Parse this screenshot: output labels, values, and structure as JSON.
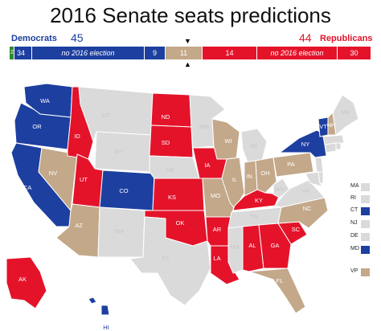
{
  "title": "2016 Senate seats predictions",
  "colors": {
    "dem": "#1d3fa0",
    "rep": "#e4132a",
    "vp": "#c3a889",
    "none": "#dadada",
    "ind": "#2e8b2e"
  },
  "democrats": {
    "label": "Democrats",
    "seats": "45"
  },
  "republicans": {
    "label": "Republicans",
    "seats": "44"
  },
  "bar": [
    {
      "id": "ind",
      "text": "2",
      "color": "ind",
      "italic": false
    },
    {
      "id": "dem-safe",
      "text": "34",
      "color": "dem",
      "italic": false
    },
    {
      "id": "dem-none",
      "text": "no 2016 election",
      "color": "dem",
      "italic": true
    },
    {
      "id": "dem-up",
      "text": "9",
      "color": "dem",
      "italic": false
    },
    {
      "id": "vp",
      "text": "11",
      "color": "vp",
      "italic": false
    },
    {
      "id": "rep-up",
      "text": "14",
      "color": "rep",
      "italic": false
    },
    {
      "id": "rep-none",
      "text": "no 2016 election",
      "color": "rep",
      "italic": true
    },
    {
      "id": "rep-safe",
      "text": "30",
      "color": "rep",
      "italic": false
    }
  ],
  "marker_top": "▼",
  "marker_bottom": "▲",
  "states": {
    "WA": "dem",
    "OR": "dem",
    "CA": "dem",
    "NV": "vp",
    "ID": "rep",
    "MT": "none",
    "WY": "none",
    "UT": "rep",
    "AZ": "vp",
    "CO": "dem",
    "NM": "none",
    "ND": "rep",
    "SD": "rep",
    "NE": "none",
    "KS": "rep",
    "OK": "rep",
    "TX": "none",
    "MN": "none",
    "IA": "rep",
    "MO": "vp",
    "AR": "rep",
    "LA": "rep",
    "WI": "vp",
    "IL": "vp",
    "MI": "none",
    "IN": "vp",
    "OH": "vp",
    "KY": "rep",
    "TN": "none",
    "MS": "none",
    "AL": "rep",
    "GA": "rep",
    "FL": "vp",
    "SC": "rep",
    "NC": "vp",
    "VA": "none",
    "WV": "none",
    "PA": "vp",
    "NY": "dem",
    "VT": "dem",
    "NH": "vp",
    "ME": "none",
    "AK": "rep",
    "HI": "dem"
  },
  "legend": [
    {
      "label": "MA",
      "color": "none"
    },
    {
      "label": "RI",
      "color": "none"
    },
    {
      "label": "CT",
      "color": "dem"
    },
    {
      "label": "NJ",
      "color": "none"
    },
    {
      "label": "DE",
      "color": "none"
    },
    {
      "label": "MD",
      "color": "dem"
    },
    {
      "label": "VP",
      "color": "vp"
    }
  ]
}
